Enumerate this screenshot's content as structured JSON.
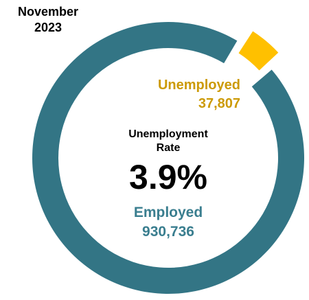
{
  "period": {
    "line1": "November",
    "line2": "2023"
  },
  "center": {
    "title_line1": "Unemployment",
    "title_line2": "Rate",
    "rate": "3.9%"
  },
  "colors": {
    "employed": "#337585",
    "unemployed": "#FFC000",
    "employed_text": "#3A7E8F",
    "unemployed_text": "#CC9A06"
  },
  "chart_data": {
    "type": "pie",
    "variant": "donut",
    "slices": [
      {
        "name": "Employed",
        "value": 930736,
        "value_label": "930,736",
        "color": "#337585",
        "exploded": false
      },
      {
        "name": "Unemployed",
        "value": 37807,
        "value_label": "37,807",
        "color": "#FFC000",
        "exploded": true
      }
    ],
    "title": "",
    "legend": "none"
  }
}
